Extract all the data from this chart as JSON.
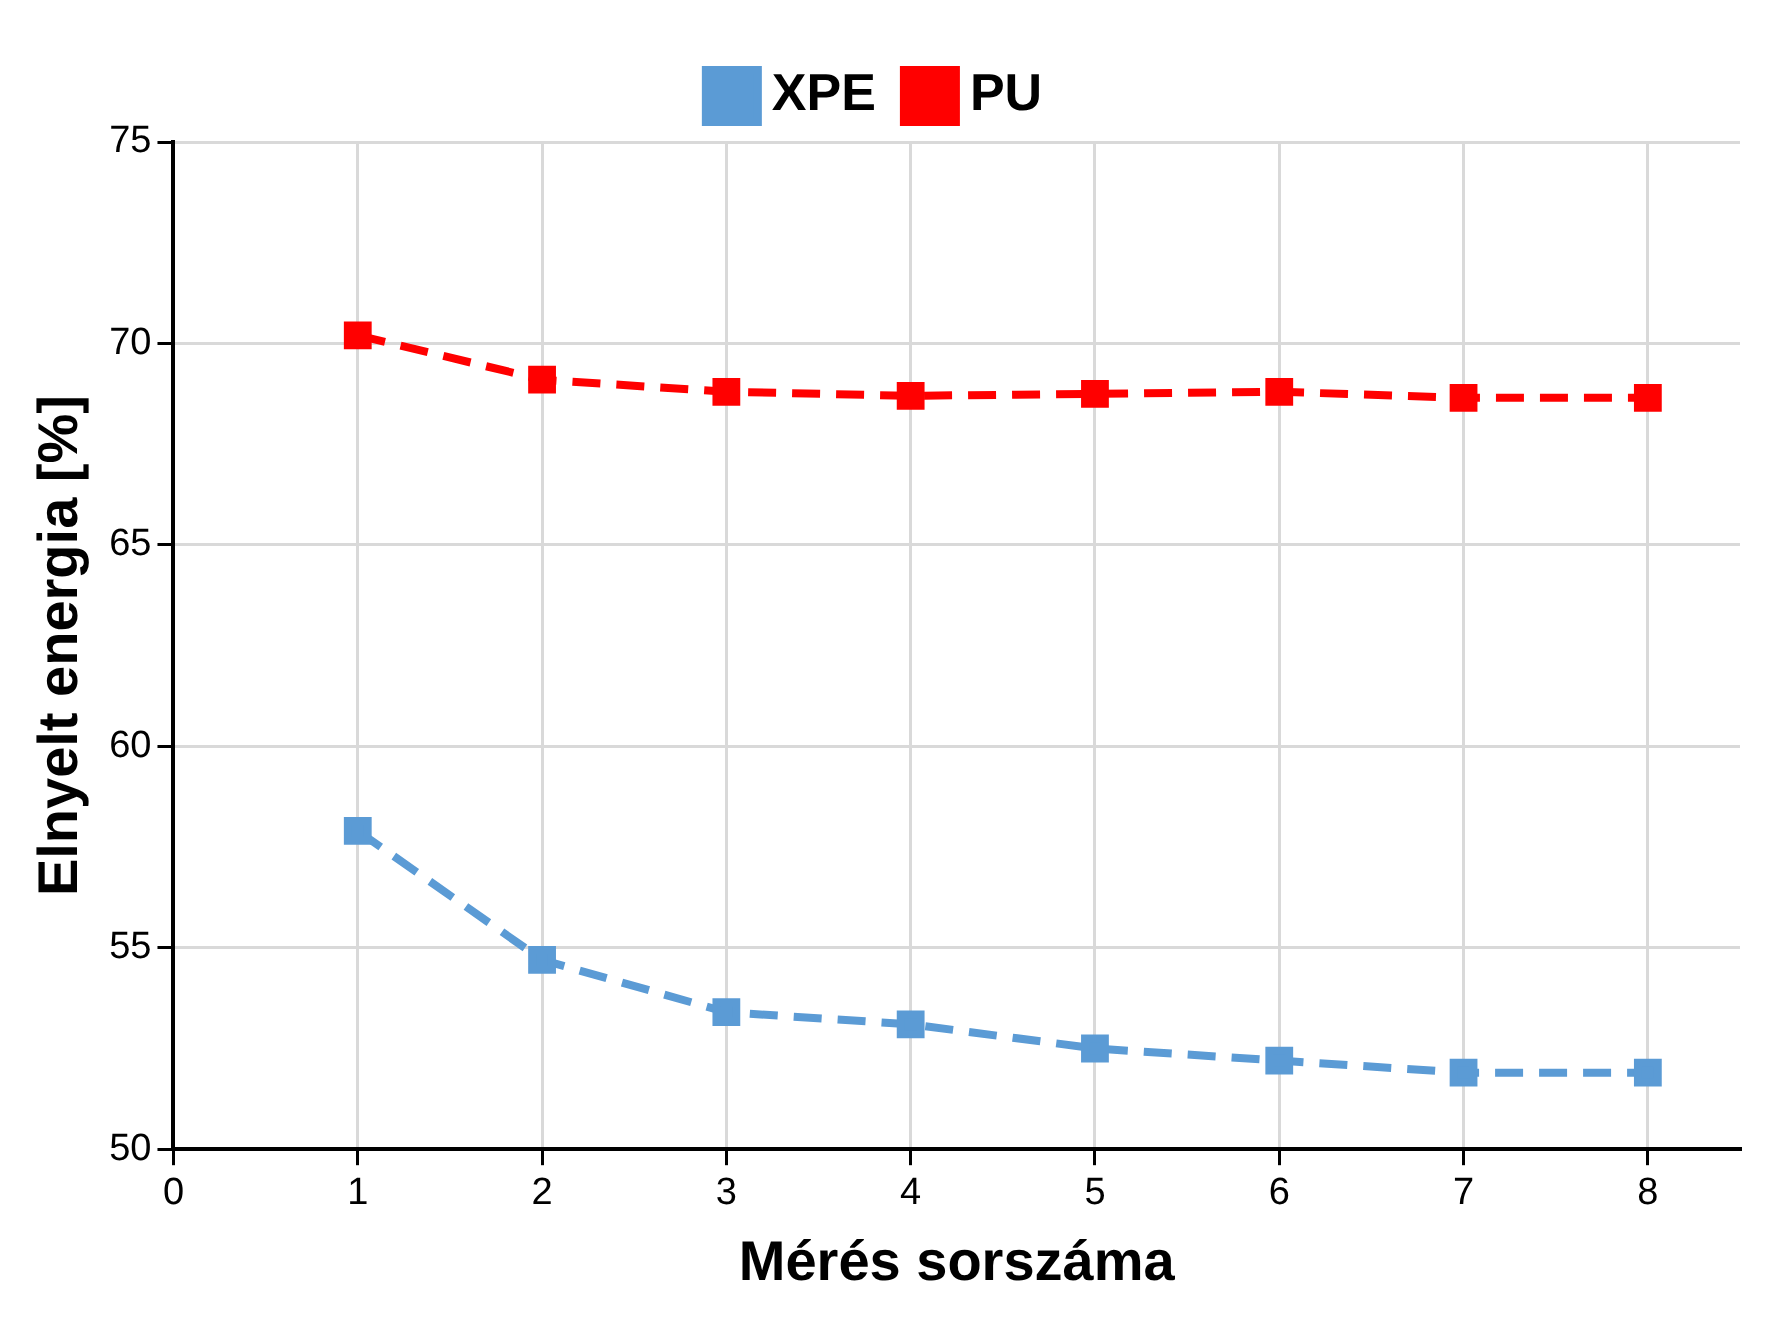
{
  "chart_data": {
    "type": "line",
    "xlabel": "Mérés sorszáma",
    "ylabel": "Elnyelt energia [%]",
    "x": [
      1,
      2,
      3,
      4,
      5,
      6,
      7,
      8
    ],
    "series": [
      {
        "name": "XPE",
        "color": "#5b9bd5",
        "values": [
          57.9,
          54.7,
          53.4,
          53.1,
          52.5,
          52.2,
          51.9,
          51.9
        ]
      },
      {
        "name": "PU",
        "color": "#ff0000",
        "values": [
          70.2,
          69.1,
          68.8,
          68.7,
          68.75,
          68.8,
          68.65,
          68.65
        ]
      }
    ],
    "xlim": [
      0,
      8.5
    ],
    "xticks": [
      0,
      1,
      2,
      3,
      4,
      5,
      6,
      7,
      8
    ],
    "ylim": [
      50,
      75
    ],
    "yticks": [
      50,
      55,
      60,
      65,
      70,
      75
    ],
    "grid": true,
    "legend": "top",
    "marker": "square",
    "line_style": "dashed"
  }
}
